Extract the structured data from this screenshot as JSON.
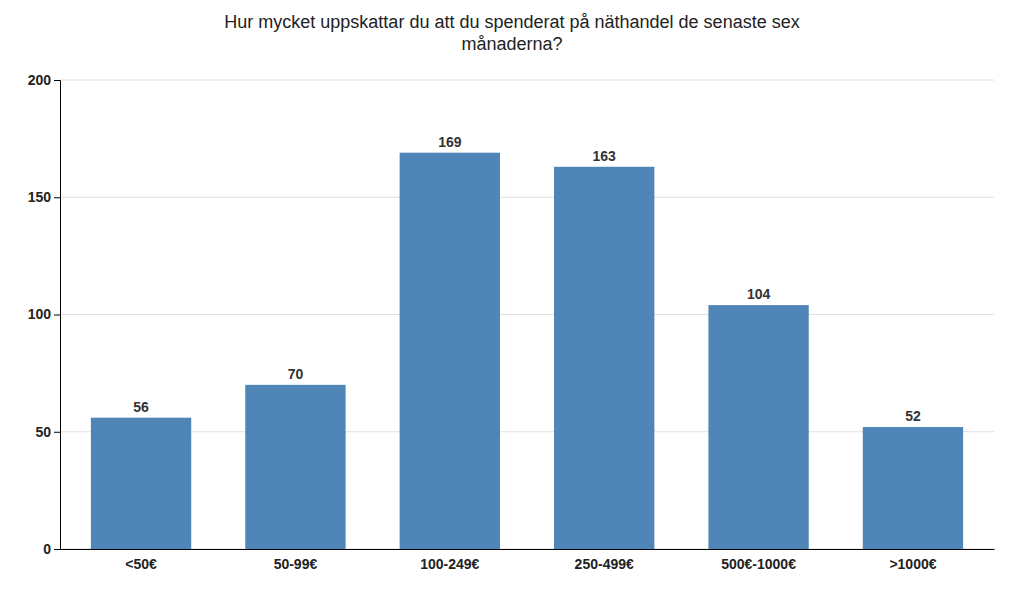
{
  "chart_data": {
    "type": "bar",
    "title": "Hur mycket uppskattar du att du spenderat på näthandel de senaste sex\nmånaderna?",
    "categories": [
      "<50€",
      "50-99€",
      "100-249€",
      "250-499€",
      "500€-1000€",
      ">1000€"
    ],
    "values": [
      56,
      70,
      169,
      163,
      104,
      52
    ],
    "color": "#5085b8",
    "ylim": [
      0,
      200
    ],
    "yticks": [
      0,
      50,
      100,
      150,
      200
    ],
    "grid": true,
    "data_labels": true
  }
}
